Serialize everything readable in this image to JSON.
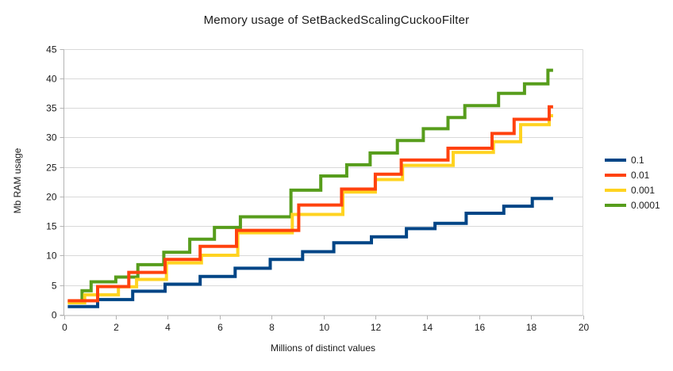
{
  "title": "Memory usage of SetBackedScalingCuckooFilter",
  "chart_data": {
    "type": "line",
    "title": "Memory usage of SetBackedScalingCuckooFilter",
    "xlabel": "Millions of distinct values",
    "ylabel": "Mb RAM usage",
    "xlim": [
      0,
      20
    ],
    "ylim": [
      0,
      45
    ],
    "x_ticks": [
      0,
      2,
      4,
      6,
      8,
      10,
      12,
      14,
      16,
      18,
      20
    ],
    "y_ticks": [
      0,
      5,
      10,
      15,
      20,
      25,
      30,
      35,
      40,
      45
    ],
    "grid": "horizontal",
    "grid_color": "#d9d9d9",
    "axis_color": "#b3b3b3",
    "tick_label_color": "#1a1a1a",
    "legend_position": "right",
    "line_style": "step-after",
    "line_width": 4,
    "x_end": 18.85,
    "draw_order": [
      "0.0001",
      "0.001",
      "0.1",
      "0.01"
    ],
    "series": [
      {
        "name": "0.1",
        "color": "#004586",
        "steps": [
          [
            0.15,
            1.5
          ],
          [
            1.3,
            2.7
          ],
          [
            2.65,
            4.1
          ],
          [
            3.9,
            5.3
          ],
          [
            5.25,
            6.6
          ],
          [
            6.6,
            8.0
          ],
          [
            7.95,
            9.5
          ],
          [
            9.2,
            10.8
          ],
          [
            10.4,
            12.3
          ],
          [
            11.85,
            13.3
          ],
          [
            13.2,
            14.7
          ],
          [
            14.3,
            15.6
          ],
          [
            15.5,
            17.3
          ],
          [
            16.95,
            18.5
          ],
          [
            18.05,
            19.8
          ]
        ]
      },
      {
        "name": "0.01",
        "color": "#FF420E",
        "steps": [
          [
            0.15,
            2.5
          ],
          [
            1.3,
            4.9
          ],
          [
            2.5,
            7.3
          ],
          [
            3.9,
            9.5
          ],
          [
            5.25,
            11.7
          ],
          [
            6.65,
            14.4
          ],
          [
            9.05,
            18.7
          ],
          [
            10.7,
            21.4
          ],
          [
            12.0,
            23.9
          ],
          [
            13.0,
            26.3
          ],
          [
            14.8,
            28.3
          ],
          [
            16.5,
            30.8
          ],
          [
            17.35,
            33.2
          ],
          [
            18.7,
            35.3
          ]
        ]
      },
      {
        "name": "0.001",
        "color": "#FFD320",
        "steps": [
          [
            0.15,
            2.15
          ],
          [
            0.8,
            3.5
          ],
          [
            2.1,
            4.85
          ],
          [
            2.8,
            6.1
          ],
          [
            3.95,
            8.9
          ],
          [
            5.3,
            10.2
          ],
          [
            6.7,
            14.0
          ],
          [
            8.8,
            17.1
          ],
          [
            10.75,
            20.9
          ],
          [
            12.0,
            23.0
          ],
          [
            13.05,
            25.4
          ],
          [
            15.0,
            27.6
          ],
          [
            16.55,
            29.4
          ],
          [
            17.6,
            32.3
          ],
          [
            18.7,
            33.8
          ]
        ]
      },
      {
        "name": "0.0001",
        "color": "#579D1C",
        "steps": [
          [
            0.15,
            2.4
          ],
          [
            0.7,
            4.2
          ],
          [
            1.05,
            5.7
          ],
          [
            2.0,
            6.5
          ],
          [
            2.85,
            8.6
          ],
          [
            3.85,
            10.7
          ],
          [
            4.85,
            12.9
          ],
          [
            5.8,
            14.9
          ],
          [
            6.8,
            16.7
          ],
          [
            8.75,
            21.2
          ],
          [
            9.9,
            23.6
          ],
          [
            10.9,
            25.5
          ],
          [
            11.8,
            27.5
          ],
          [
            12.85,
            29.6
          ],
          [
            13.85,
            31.6
          ],
          [
            14.8,
            33.5
          ],
          [
            15.45,
            35.5
          ],
          [
            16.75,
            37.6
          ],
          [
            17.75,
            39.2
          ],
          [
            18.65,
            41.5
          ]
        ]
      }
    ]
  }
}
